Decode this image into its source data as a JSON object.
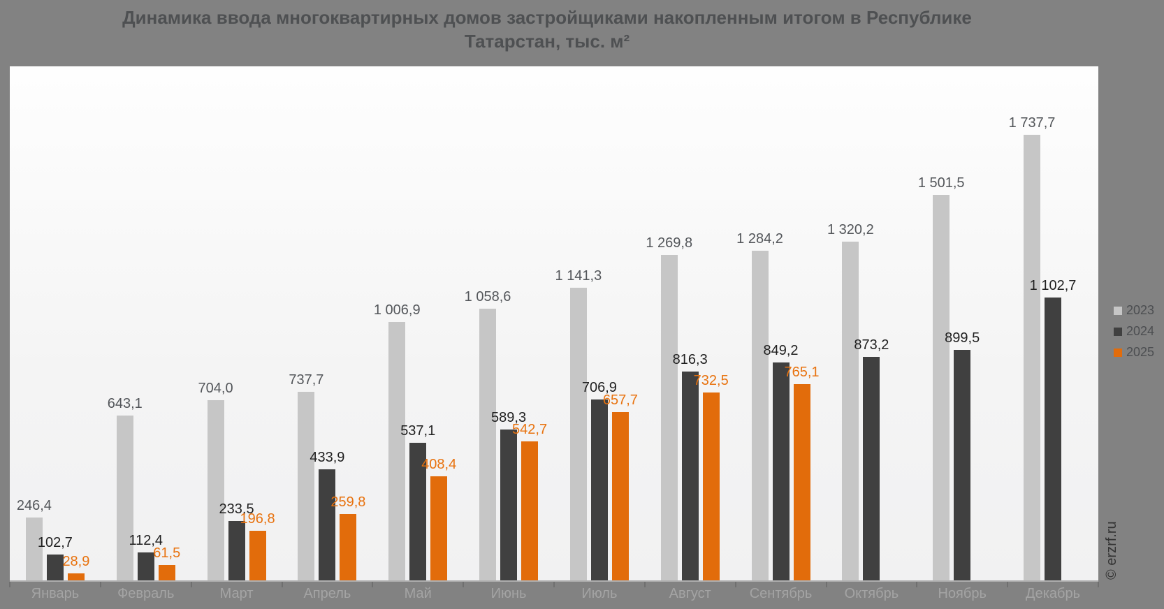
{
  "title": {
    "line1": "Динамика ввода многоквартирных домов застройщиками накопленным итогом в Республике",
    "line2": "Татарстан, тыс. м²"
  },
  "watermark": "© erzrf.ru",
  "legend": [
    {
      "label": "2023",
      "color": "#c6c6c6"
    },
    {
      "label": "2024",
      "color": "#404040"
    },
    {
      "label": "2025",
      "color": "#e26c0b"
    }
  ],
  "colors": {
    "background": "#828282",
    "plot_background_top": "#fefefe",
    "plot_background_bottom": "#f1f1f2",
    "axis_line": "#afafaf",
    "axis_tick": "#6f6f6f",
    "month_label": "#a4a4a4",
    "legend_text": "#4c4e51",
    "title_text": "#4e5052",
    "watermark_text": "#333333"
  },
  "chart_data": {
    "type": "bar",
    "title": "Динамика ввода многоквартирных домов застройщиками накопленным итогом в Республике Татарстан, тыс. м²",
    "unit": "тыс. м²",
    "grid": false,
    "value_labels": true,
    "legend_position": "right",
    "ylim": [
      0,
      2000
    ],
    "categories": [
      "Январь",
      "Февраль",
      "Март",
      "Апрель",
      "Май",
      "Июнь",
      "Июль",
      "Август",
      "Сентябрь",
      "Октябрь",
      "Ноябрь",
      "Декабрь"
    ],
    "series": [
      {
        "name": "2023",
        "color": "#c6c6c6",
        "label_color": "#53565a",
        "values": [
          246.4,
          643.1,
          704.0,
          737.7,
          1006.9,
          1058.6,
          1141.3,
          1269.8,
          1284.2,
          1320.2,
          1501.5,
          1737.7
        ],
        "labels": [
          "246,4",
          "643,1",
          "704,0",
          "737,7",
          "1 006,9",
          "1 058,6",
          "1 141,3",
          "1 269,8",
          "1 284,2",
          "1 320,2",
          "1 501,5",
          "1 737,7"
        ]
      },
      {
        "name": "2024",
        "color": "#404040",
        "label_color": "#1f1f1f",
        "values": [
          102.7,
          112.4,
          233.5,
          433.9,
          537.1,
          589.3,
          706.9,
          816.3,
          849.2,
          873.2,
          899.5,
          1102.7
        ],
        "labels": [
          "102,7",
          "112,4",
          "233,5",
          "433,9",
          "537,1",
          "589,3",
          "706,9",
          "816,3",
          "849,2",
          "873,2",
          "899,5",
          "1 102,7"
        ]
      },
      {
        "name": "2025",
        "color": "#e26c0b",
        "label_color": "#e8720e",
        "values": [
          28.9,
          61.5,
          196.8,
          259.8,
          408.4,
          542.7,
          657.7,
          732.5,
          765.1,
          null,
          null,
          null
        ],
        "labels": [
          "28,9",
          "61,5",
          "196,8",
          "259,8",
          "408,4",
          "542,7",
          "657,7",
          "732,5",
          "765,1",
          null,
          null,
          null
        ]
      }
    ]
  }
}
